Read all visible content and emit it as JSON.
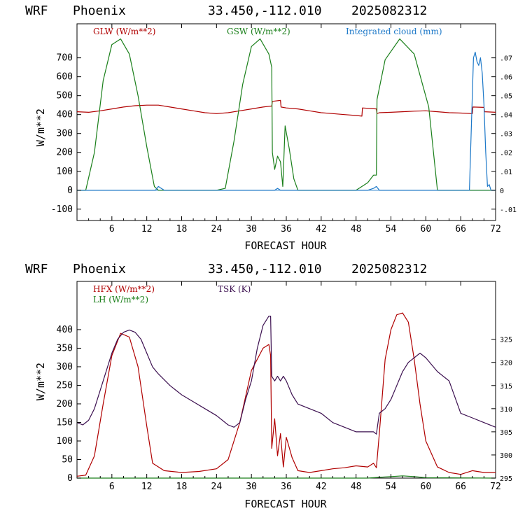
{
  "chart_data": [
    {
      "type": "line",
      "header": {
        "model": "WRF",
        "location": "Phoenix",
        "coords": "33.450,-112.010",
        "run": "2025082312"
      },
      "xlabel": "FORECAST HOUR",
      "ylabel": "W/m**2",
      "xlim": [
        0,
        72
      ],
      "ylim": [
        -160,
        880
      ],
      "y2lim": [
        -0.016,
        0.088
      ],
      "xticks": [
        6,
        12,
        18,
        24,
        30,
        36,
        42,
        48,
        54,
        60,
        66,
        72
      ],
      "yticks": [
        -100,
        0,
        100,
        200,
        300,
        400,
        500,
        600,
        700
      ],
      "y2ticks": [
        {
          "v": -0.01,
          "t": "-.01"
        },
        {
          "v": 0,
          "t": "0"
        },
        {
          "v": 0.01,
          "t": ".01"
        },
        {
          "v": 0.02,
          "t": ".02"
        },
        {
          "v": 0.03,
          "t": ".03"
        },
        {
          "v": 0.04,
          "t": ".04"
        },
        {
          "v": 0.05,
          "t": ".05"
        },
        {
          "v": 0.06,
          "t": ".06"
        },
        {
          "v": 0.07,
          "t": ".07"
        }
      ],
      "zero_line": true,
      "series": [
        {
          "name": "GLW (W/m**2)",
          "color": "#b00000",
          "axis": "left",
          "x": [
            0,
            2,
            4,
            6,
            8,
            10,
            12,
            14,
            16,
            18,
            20,
            22,
            24,
            26,
            28,
            30,
            32,
            33.5,
            33.6,
            35,
            35.1,
            36,
            38,
            40,
            42,
            44,
            46,
            48,
            49,
            49.1,
            51.5,
            51.6,
            52,
            54,
            56,
            58,
            60,
            62,
            64,
            66,
            68,
            68.1,
            70,
            70.1,
            72
          ],
          "y": [
            415,
            412,
            420,
            430,
            440,
            447,
            450,
            450,
            440,
            430,
            420,
            410,
            405,
            410,
            420,
            430,
            440,
            445,
            470,
            475,
            440,
            435,
            430,
            420,
            410,
            405,
            400,
            395,
            392,
            435,
            430,
            405,
            410,
            412,
            415,
            418,
            420,
            415,
            410,
            408,
            405,
            440,
            438,
            415,
            412
          ]
        },
        {
          "name": "GSW (W/m**2)",
          "color": "#1a7f1a",
          "axis": "left",
          "x": [
            0,
            1.5,
            3,
            4.5,
            6,
            7.5,
            9,
            10.5,
            12,
            13.3,
            14,
            24,
            25.5,
            27,
            28.5,
            30,
            31.5,
            33,
            33.5,
            33.6,
            34,
            34.5,
            35,
            35.4,
            35.8,
            36.5,
            37.3,
            38,
            48,
            49,
            50,
            51,
            51.5,
            51.6,
            53,
            55.5,
            58,
            60.5,
            62,
            72
          ],
          "y": [
            0,
            0,
            200,
            580,
            770,
            800,
            720,
            500,
            230,
            20,
            0,
            0,
            10,
            260,
            560,
            760,
            800,
            720,
            650,
            200,
            110,
            180,
            150,
            20,
            340,
            220,
            60,
            0,
            0,
            20,
            40,
            80,
            80,
            480,
            690,
            800,
            720,
            440,
            0,
            0
          ]
        },
        {
          "name": "Integrated cloud (mm)",
          "color": "#1c78c8",
          "axis": "right",
          "x": [
            0,
            13.5,
            14,
            14.5,
            15,
            34,
            34.5,
            35,
            50,
            51,
            51.5,
            52,
            67.5,
            67.9,
            68.2,
            68.5,
            68.8,
            69.1,
            69.4,
            69.7,
            70,
            70.3,
            70.6,
            70.9,
            71.2,
            72
          ],
          "y": [
            0,
            0,
            0.002,
            0.001,
            0,
            0,
            0.001,
            0,
            0,
            0.001,
            0.002,
            0,
            0,
            0.04,
            0.07,
            0.073,
            0.068,
            0.066,
            0.07,
            0.062,
            0.045,
            0.02,
            0.002,
            0.003,
            0,
            0
          ]
        }
      ]
    },
    {
      "type": "line",
      "header": {
        "model": "WRF",
        "location": "Phoenix",
        "coords": "33.450,-112.010",
        "run": "2025082312"
      },
      "xlabel": "FORECAST HOUR",
      "ylabel": "W/m**2",
      "xlim": [
        0,
        72
      ],
      "ylim": [
        0,
        530
      ],
      "y2lim": [
        295,
        337.5
      ],
      "xticks": [
        6,
        12,
        18,
        24,
        30,
        36,
        42,
        48,
        54,
        60,
        66,
        72
      ],
      "yticks": [
        0,
        50,
        100,
        150,
        200,
        250,
        300,
        350,
        400
      ],
      "y2ticks": [
        {
          "v": 295,
          "t": "295"
        },
        {
          "v": 300,
          "t": "300"
        },
        {
          "v": 305,
          "t": "305"
        },
        {
          "v": 310,
          "t": "310"
        },
        {
          "v": 315,
          "t": "315"
        },
        {
          "v": 320,
          "t": "320"
        },
        {
          "v": 325,
          "t": "325"
        }
      ],
      "series": [
        {
          "name": "HFX (W/m**2)",
          "color": "#b00000",
          "axis": "left",
          "x": [
            0,
            1.5,
            3,
            4.5,
            6,
            7.5,
            9,
            10.5,
            12,
            13,
            15,
            18,
            21,
            24,
            26,
            28,
            30,
            32,
            33,
            33.3,
            33.5,
            34,
            34.5,
            35,
            35.5,
            36,
            37,
            38,
            40,
            42,
            44,
            46,
            48,
            50,
            51,
            51.5,
            52,
            53,
            54,
            55,
            56,
            57,
            58,
            59,
            60,
            62,
            64,
            66,
            68,
            70,
            72
          ],
          "y": [
            5,
            8,
            60,
            200,
            330,
            390,
            380,
            300,
            140,
            40,
            20,
            15,
            18,
            25,
            50,
            150,
            290,
            350,
            360,
            330,
            80,
            160,
            60,
            120,
            30,
            110,
            55,
            20,
            15,
            20,
            25,
            28,
            33,
            30,
            40,
            28,
            120,
            320,
            400,
            440,
            445,
            420,
            320,
            200,
            100,
            30,
            15,
            10,
            20,
            15,
            15
          ]
        },
        {
          "name": "LH (W/m**2)",
          "color": "#1a7f1a",
          "axis": "left",
          "x": [
            0,
            50,
            52,
            54,
            56,
            58,
            60,
            72
          ],
          "y": [
            0,
            0,
            2,
            4,
            6,
            4,
            1,
            0
          ]
        },
        {
          "name": "TSK (K)",
          "color": "#3c1050",
          "axis": "right",
          "x": [
            0,
            1,
            2,
            3,
            4,
            5,
            6,
            7,
            8,
            9,
            10,
            11,
            12,
            13,
            14,
            16,
            18,
            20,
            22,
            24,
            26,
            27,
            28,
            29,
            30,
            31,
            32,
            33,
            33.3,
            33.5,
            34,
            34.5,
            35,
            35.5,
            36,
            37,
            38,
            40,
            42,
            44,
            46,
            48,
            50,
            51,
            51.5,
            52,
            53,
            54,
            55,
            56,
            57,
            58,
            59,
            60,
            62,
            64,
            66,
            68,
            70,
            72
          ],
          "y": [
            307,
            306.5,
            307.5,
            310,
            314,
            318,
            322,
            325,
            326.5,
            327,
            326.5,
            325,
            322,
            319,
            317.5,
            315,
            313,
            311.5,
            310,
            308.5,
            306.5,
            306,
            307,
            312,
            316,
            323,
            328,
            330,
            330,
            317,
            316,
            317,
            316,
            317,
            316,
            313,
            311,
            310,
            309,
            307,
            306,
            305,
            305,
            305,
            304.5,
            309,
            310,
            312,
            315,
            318,
            320,
            321,
            322,
            321,
            318,
            316,
            309,
            308,
            307,
            306
          ]
        }
      ]
    }
  ],
  "panel1": {
    "header": {
      "model": "WRF",
      "location": "Phoenix",
      "coords": "33.450,-112.010",
      "run": "2025082312"
    },
    "xlabel": "FORECAST HOUR",
    "ylabel": "W/m**2",
    "legend": {
      "glw": "GLW (W/m**2)",
      "gsw": "GSW (W/m**2)",
      "cloud": "Integrated cloud (mm)"
    },
    "colors": {
      "glw": "#b00000",
      "gsw": "#1a7f1a",
      "cloud": "#1c78c8"
    }
  },
  "panel2": {
    "header": {
      "model": "WRF",
      "location": "Phoenix",
      "coords": "33.450,-112.010",
      "run": "2025082312"
    },
    "xlabel": "FORECAST HOUR",
    "ylabel": "W/m**2",
    "legend": {
      "hfx": "HFX (W/m**2)",
      "lh": "LH (W/m**2)",
      "tsk": "TSK (K)"
    },
    "colors": {
      "hfx": "#b00000",
      "lh": "#1a7f1a",
      "tsk": "#3c1050"
    }
  }
}
